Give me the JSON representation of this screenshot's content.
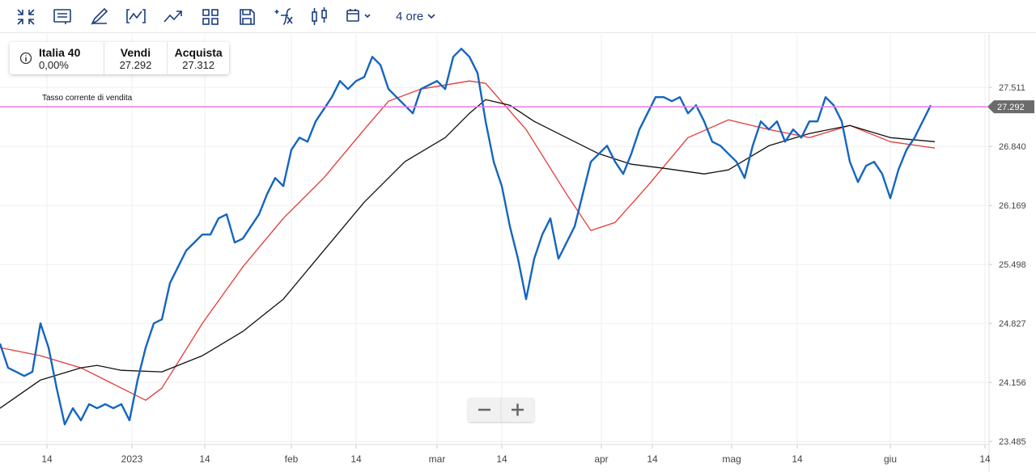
{
  "toolbar": {
    "interval": "4 ore"
  },
  "info": {
    "name": "Italia 40",
    "change": "0,00%",
    "sell_label": "Vendi",
    "sell": "27.292",
    "buy_label": "Acquista",
    "buy": "27.312"
  },
  "chart_data": {
    "type": "line",
    "current_label": "Tasso corrente di vendita",
    "current_value": 27.292,
    "current_color": "#e879e8",
    "xlim": [
      0,
      122
    ],
    "ylim": [
      23.45,
      28.12
    ],
    "grid": true,
    "xticks": [
      {
        "value": 5.8,
        "label": "14"
      },
      {
        "value": 16.3,
        "label": "2023"
      },
      {
        "value": 25.3,
        "label": "14"
      },
      {
        "value": 36,
        "label": "feb"
      },
      {
        "value": 44,
        "label": "14"
      },
      {
        "value": 54,
        "label": "mar"
      },
      {
        "value": 62,
        "label": "14"
      },
      {
        "value": 74.3,
        "label": "apr"
      },
      {
        "value": 80.6,
        "label": "14"
      },
      {
        "value": 90.4,
        "label": "mag"
      },
      {
        "value": 98.5,
        "label": "14"
      },
      {
        "value": 110,
        "label": "giu"
      },
      {
        "value": 121.7,
        "label": "14"
      }
    ],
    "yticks": [
      23.485,
      24.156,
      24.827,
      25.498,
      26.169,
      {
        "value": 26.84,
        "label": "26.840"
      },
      27.511
    ],
    "series": [
      {
        "color": "#e53935",
        "width": 1.3,
        "x": [
          0,
          5,
          10,
          15,
          18,
          20,
          25,
          30,
          35,
          40,
          45,
          48,
          52,
          58,
          60,
          65,
          70,
          73,
          76,
          80,
          85,
          90,
          95,
          100,
          105,
          110,
          115.5
        ],
        "values": [
          24.552,
          24.46,
          24.322,
          24.092,
          23.954,
          24.092,
          24.828,
          25.471,
          26.022,
          26.482,
          27.033,
          27.355,
          27.493,
          27.585,
          27.557,
          27.033,
          26.298,
          25.884,
          25.976,
          26.39,
          26.941,
          27.143,
          27.033,
          26.941,
          27.079,
          26.895,
          26.822
        ]
      },
      {
        "color": "#111111",
        "width": 1.3,
        "x": [
          0,
          5,
          10,
          12,
          15,
          20,
          25,
          30,
          35,
          40,
          45,
          50,
          55,
          58,
          60,
          63,
          66,
          70,
          74,
          78,
          82,
          87,
          90,
          95,
          100,
          105,
          110,
          115.5
        ],
        "values": [
          23.863,
          24.184,
          24.322,
          24.35,
          24.294,
          24.276,
          24.46,
          24.736,
          25.103,
          25.655,
          26.206,
          26.666,
          26.941,
          27.217,
          27.373,
          27.309,
          27.125,
          26.941,
          26.757,
          26.638,
          26.592,
          26.528,
          26.574,
          26.849,
          26.987,
          27.079,
          26.941,
          26.895
        ]
      },
      {
        "color": "#1565c0",
        "width": 2.4,
        "x": [
          0,
          1,
          2,
          3,
          4,
          5,
          6,
          7,
          8,
          9,
          10,
          11,
          12,
          13,
          14,
          15,
          16,
          17,
          18,
          19,
          20,
          21,
          22,
          23,
          24,
          25,
          26,
          27,
          28,
          29,
          30,
          31,
          32,
          33,
          34,
          35,
          36,
          37,
          38,
          39,
          40,
          41,
          42,
          43,
          44,
          45,
          46,
          47,
          48,
          49,
          50,
          51,
          52,
          53,
          54,
          55,
          56,
          57,
          58,
          59,
          60,
          61,
          62,
          63,
          64,
          65,
          66,
          67,
          68,
          69,
          70,
          71,
          72,
          73,
          74,
          75,
          76,
          77,
          78,
          79,
          80,
          81,
          82,
          83,
          84,
          85,
          86,
          87,
          88,
          89,
          90,
          91,
          92,
          93,
          94,
          95,
          96,
          97,
          98,
          99,
          100,
          101,
          102,
          103,
          104,
          105,
          106,
          107,
          108,
          109,
          110,
          111,
          112,
          113,
          114,
          115
        ],
        "values": [
          24.598,
          24.322,
          24.276,
          24.23,
          24.276,
          24.828,
          24.552,
          24.092,
          23.679,
          23.863,
          23.725,
          23.909,
          23.863,
          23.909,
          23.863,
          23.909,
          23.725,
          24.184,
          24.552,
          24.828,
          24.873,
          25.287,
          25.471,
          25.655,
          25.747,
          25.838,
          25.838,
          26.022,
          26.068,
          25.747,
          25.792,
          25.93,
          26.068,
          26.298,
          26.482,
          26.39,
          26.803,
          26.941,
          26.895,
          27.125,
          27.263,
          27.401,
          27.585,
          27.493,
          27.585,
          27.63,
          27.86,
          27.768,
          27.493,
          27.401,
          27.309,
          27.217,
          27.493,
          27.539,
          27.585,
          27.493,
          27.86,
          27.952,
          27.86,
          27.676,
          27.125,
          26.666,
          26.39,
          25.93,
          25.563,
          25.103,
          25.563,
          25.838,
          26.022,
          25.563,
          25.747,
          25.93,
          26.298,
          26.666,
          26.757,
          26.849,
          26.666,
          26.528,
          26.757,
          27.033,
          27.217,
          27.401,
          27.401,
          27.355,
          27.401,
          27.217,
          27.309,
          27.125,
          26.895,
          26.849,
          26.757,
          26.666,
          26.482,
          26.849,
          27.125,
          27.033,
          27.125,
          26.895,
          27.033,
          26.941,
          27.125,
          27.125,
          27.401,
          27.309,
          27.125,
          26.666,
          26.436,
          26.62,
          26.666,
          26.528,
          26.252,
          26.574,
          26.803,
          26.941,
          27.125,
          27.309
        ]
      }
    ]
  }
}
